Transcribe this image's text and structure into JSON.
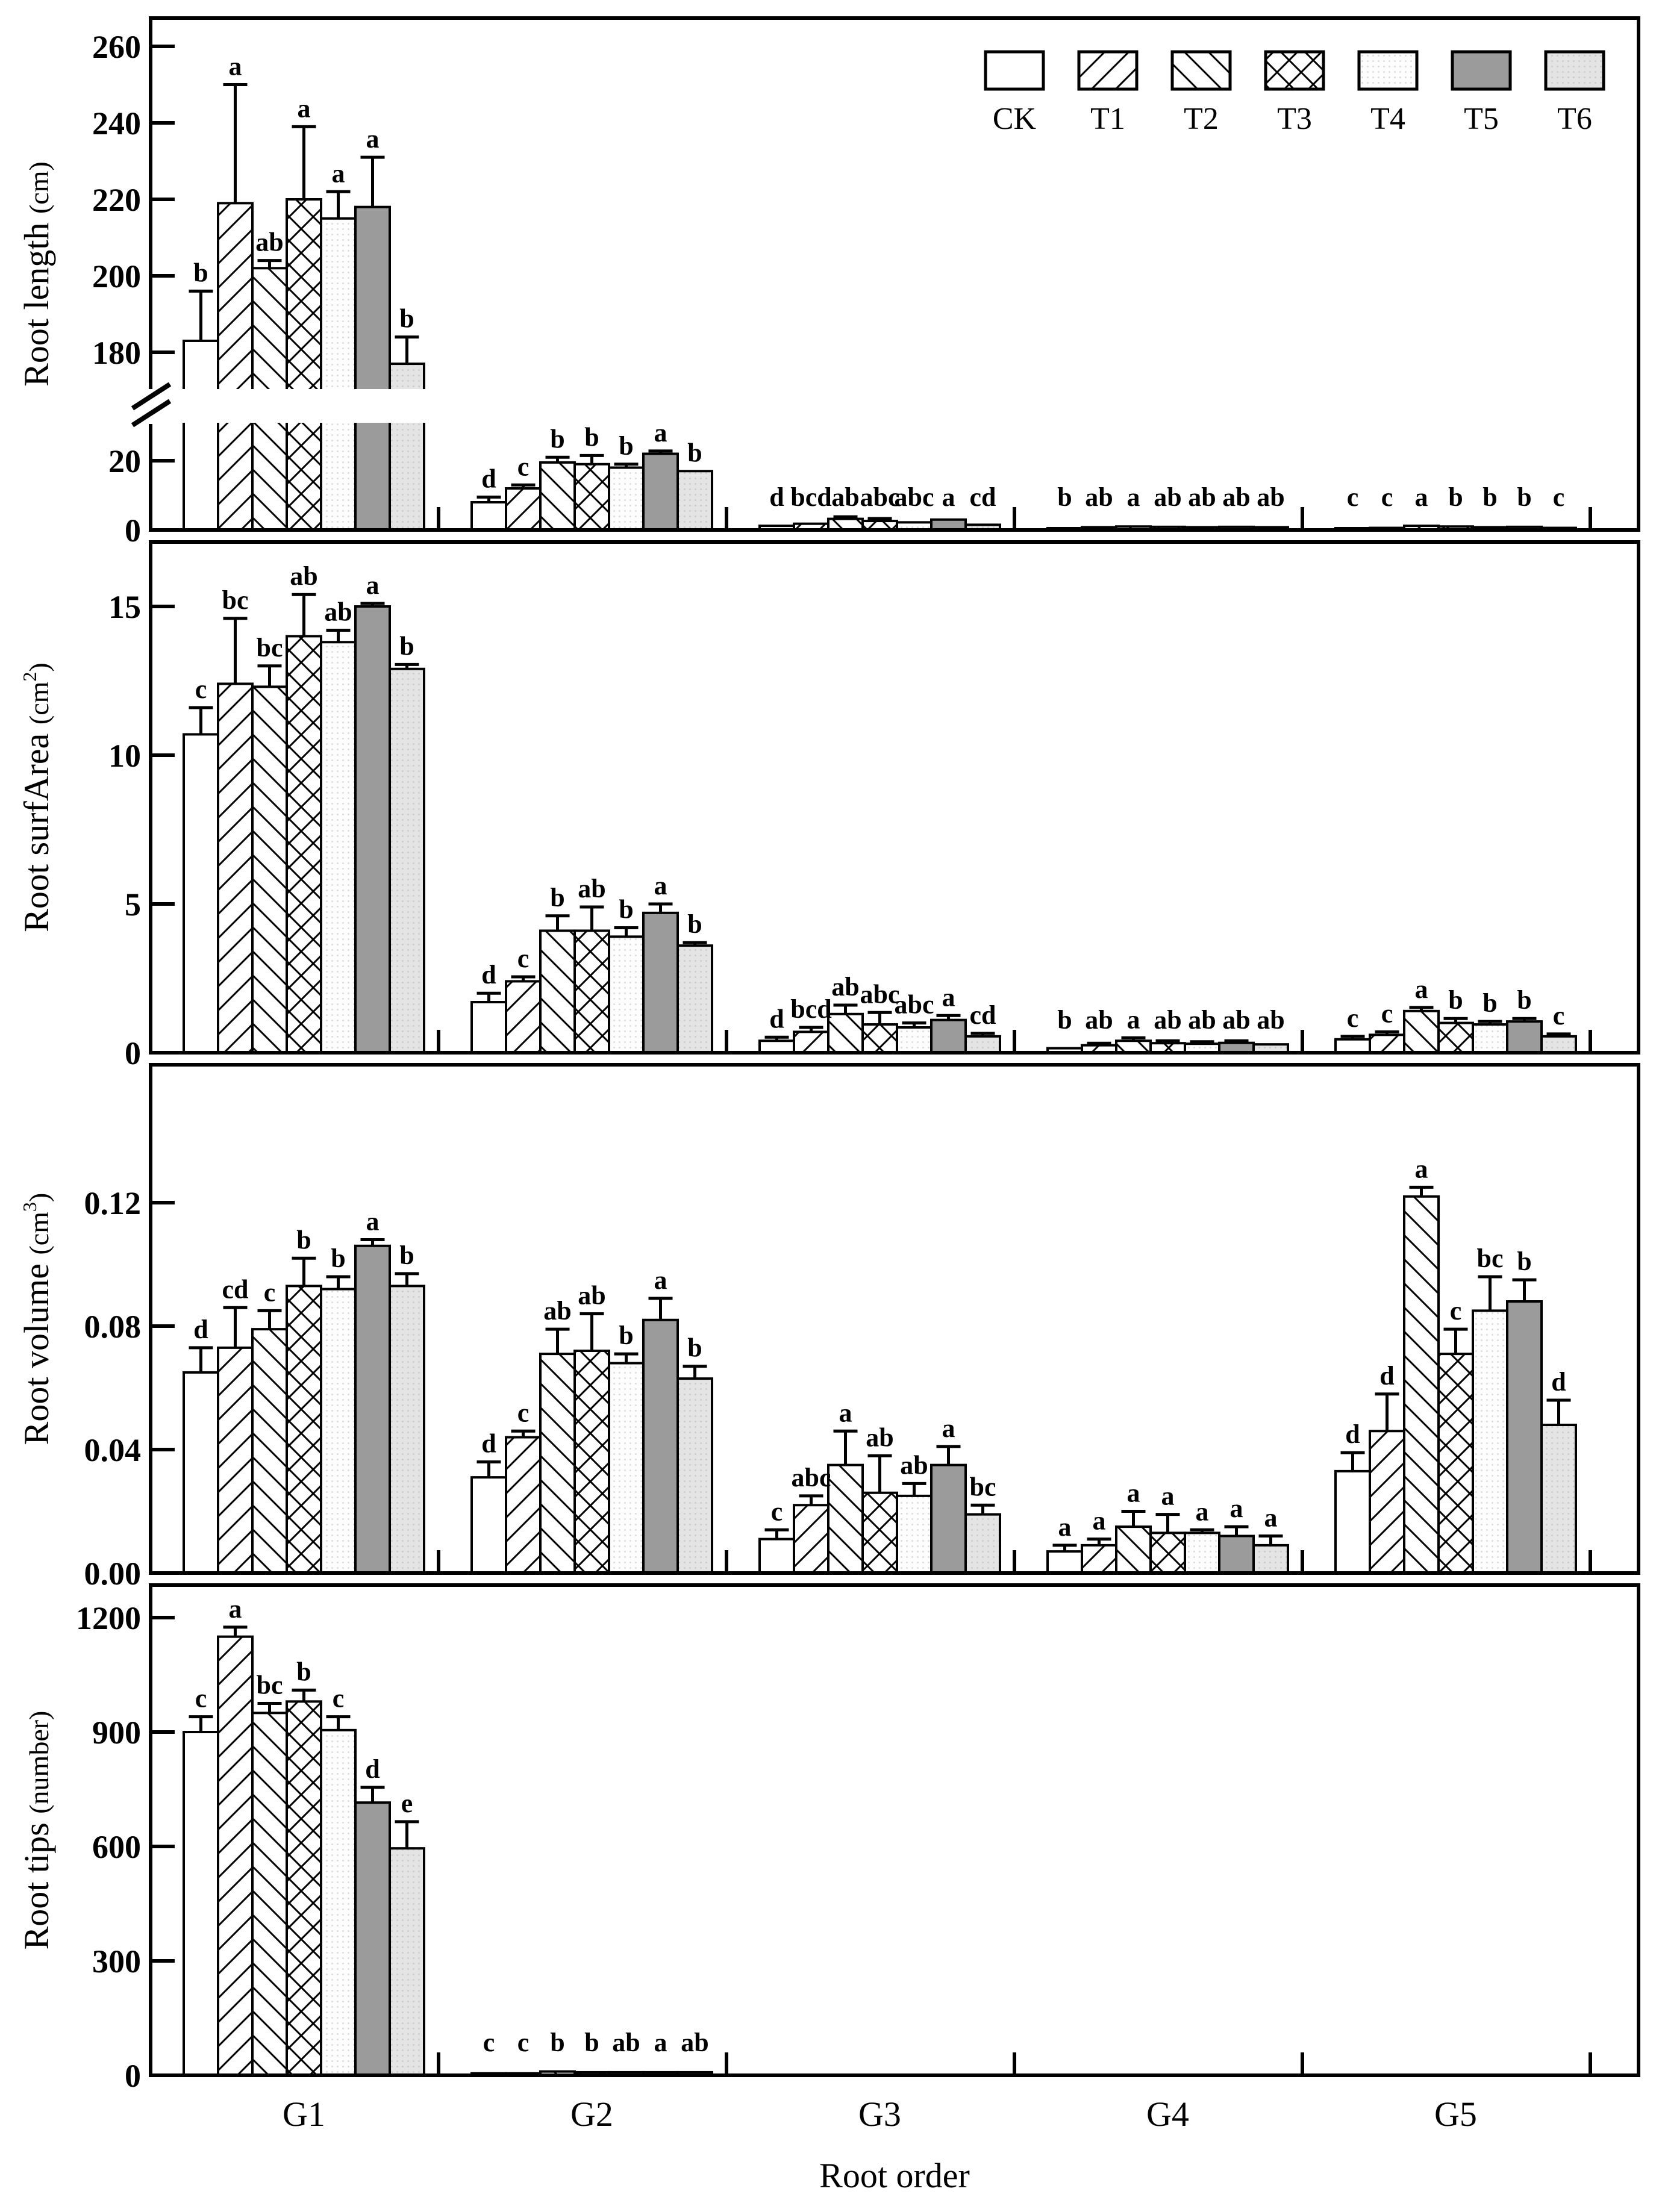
{
  "figure": {
    "xlabel": "Root order",
    "groups": [
      "G1",
      "G2",
      "G3",
      "G4",
      "G5"
    ],
    "legend": [
      "CK",
      "T1",
      "T2",
      "T3",
      "T4",
      "T5",
      "T6"
    ],
    "style": {
      "ink": "#000000",
      "t4_bg": "#fdfdfd",
      "t4_dot": "#d8d8d8",
      "t5_fill": "#9b9b9b",
      "t6_bg": "#e4e4e4",
      "t6_dot": "#c9c9c9"
    }
  },
  "chart_data": [
    {
      "type": "bar",
      "ylabel": {
        "name": "Root length",
        "unit_prefix": "(cm",
        "unit_sup": "",
        "unit_suffix": ")"
      },
      "axis_break": {
        "lower_max": 30,
        "upper_min": 170
      },
      "yticks_lower": [
        "0",
        "20"
      ],
      "yticks_upper": [
        "180",
        "200",
        "220",
        "240",
        "260"
      ],
      "categories": [
        "G1",
        "G2",
        "G3",
        "G4",
        "G5"
      ],
      "series": [
        {
          "name": "CK",
          "values": [
            183,
            8,
            1.2,
            0.5,
            0.5
          ],
          "errors": [
            13,
            1.5,
            0.4,
            0.2,
            0.15
          ],
          "letters": [
            "b",
            "d",
            "d",
            "b",
            "c"
          ]
        },
        {
          "name": "T1",
          "values": [
            219,
            12,
            1.8,
            0.8,
            0.6
          ],
          "errors": [
            31,
            1,
            0.5,
            0.3,
            0.2
          ],
          "letters": [
            "a",
            "c",
            "bcd",
            "ab",
            "c"
          ]
        },
        {
          "name": "T2",
          "values": [
            202,
            19.5,
            3.2,
            1.0,
            1.2
          ],
          "errors": [
            2,
            1.5,
            0.6,
            0.3,
            0.3
          ],
          "letters": [
            "ab",
            "b",
            "ab",
            "a",
            "a"
          ]
        },
        {
          "name": "T3",
          "values": [
            220,
            19,
            2.6,
            0.9,
            1.0
          ],
          "errors": [
            19,
            2.5,
            0.7,
            0.3,
            0.3
          ],
          "letters": [
            "a",
            "b",
            "abc",
            "ab",
            "b"
          ]
        },
        {
          "name": "T4",
          "values": [
            215,
            18,
            2.2,
            0.8,
            0.8
          ],
          "errors": [
            7,
            1,
            0.5,
            0.3,
            0.2
          ],
          "letters": [
            "a",
            "b",
            "abc",
            "ab",
            "b"
          ]
        },
        {
          "name": "T5",
          "values": [
            218,
            22,
            3.0,
            0.9,
            0.9
          ],
          "errors": [
            13,
            0.8,
            0.4,
            0.3,
            0.2
          ],
          "letters": [
            "a",
            "a",
            "a",
            "ab",
            "b"
          ]
        },
        {
          "name": "T6",
          "values": [
            177,
            17,
            1.5,
            0.8,
            0.6
          ],
          "errors": [
            7,
            0.5,
            0.4,
            0.2,
            0.2
          ],
          "letters": [
            "b",
            "b",
            "cd",
            "ab",
            "c"
          ]
        }
      ]
    },
    {
      "type": "bar",
      "ylabel": {
        "name": "Root surfArea",
        "unit_prefix": "(cm",
        "unit_sup": "2",
        "unit_suffix": ")"
      },
      "yticks": [
        "0",
        "5",
        "10",
        "15"
      ],
      "ytick_values": [
        0,
        5,
        10,
        15
      ],
      "categories": [
        "G1",
        "G2",
        "G3",
        "G4",
        "G5"
      ],
      "series": [
        {
          "name": "CK",
          "values": [
            10.7,
            1.7,
            0.4,
            0.15,
            0.45
          ],
          "errors": [
            0.9,
            0.3,
            0.12,
            0.06,
            0.1
          ],
          "letters": [
            "c",
            "d",
            "d",
            "b",
            "c"
          ]
        },
        {
          "name": "T1",
          "values": [
            12.4,
            2.4,
            0.7,
            0.25,
            0.6
          ],
          "errors": [
            2.2,
            0.15,
            0.15,
            0.07,
            0.1
          ],
          "letters": [
            "bc",
            "c",
            "bcd",
            "ab",
            "c"
          ]
        },
        {
          "name": "T2",
          "values": [
            12.3,
            4.1,
            1.3,
            0.4,
            1.4
          ],
          "errors": [
            0.7,
            0.5,
            0.3,
            0.1,
            0.12
          ],
          "letters": [
            "bc",
            "b",
            "ab",
            "a",
            "a"
          ]
        },
        {
          "name": "T3",
          "values": [
            14.0,
            4.1,
            0.95,
            0.32,
            1.0
          ],
          "errors": [
            1.4,
            0.8,
            0.4,
            0.08,
            0.15
          ],
          "letters": [
            "ab",
            "ab",
            "abc",
            "ab",
            "b"
          ]
        },
        {
          "name": "T4",
          "values": [
            13.8,
            3.9,
            0.85,
            0.3,
            0.95
          ],
          "errors": [
            0.4,
            0.3,
            0.15,
            0.07,
            0.1
          ],
          "letters": [
            "ab",
            "b",
            "abc",
            "ab",
            "b"
          ]
        },
        {
          "name": "T5",
          "values": [
            15.0,
            4.7,
            1.1,
            0.33,
            1.05
          ],
          "errors": [
            0.1,
            0.3,
            0.15,
            0.07,
            0.1
          ],
          "letters": [
            "a",
            "a",
            "a",
            "ab",
            "b"
          ]
        },
        {
          "name": "T6",
          "values": [
            12.9,
            3.6,
            0.55,
            0.28,
            0.55
          ],
          "errors": [
            0.15,
            0.1,
            0.1,
            0.06,
            0.08
          ],
          "letters": [
            "b",
            "b",
            "cd",
            "ab",
            "c"
          ]
        }
      ]
    },
    {
      "type": "bar",
      "ylabel": {
        "name": "Root volume",
        "unit_prefix": "(cm",
        "unit_sup": "3",
        "unit_suffix": ")"
      },
      "yticks": [
        "0.00",
        "0.04",
        "0.08",
        "0.12"
      ],
      "ytick_values": [
        0,
        0.04,
        0.08,
        0.12
      ],
      "categories": [
        "G1",
        "G2",
        "G3",
        "G4",
        "G5"
      ],
      "series": [
        {
          "name": "CK",
          "values": [
            0.065,
            0.031,
            0.011,
            0.007,
            0.033
          ],
          "errors": [
            0.008,
            0.005,
            0.003,
            0.002,
            0.006
          ],
          "letters": [
            "d",
            "d",
            "c",
            "a",
            "d"
          ]
        },
        {
          "name": "T1",
          "values": [
            0.073,
            0.044,
            0.022,
            0.009,
            0.046
          ],
          "errors": [
            0.013,
            0.002,
            0.003,
            0.002,
            0.012
          ],
          "letters": [
            "cd",
            "c",
            "abc",
            "a",
            "d"
          ]
        },
        {
          "name": "T2",
          "values": [
            0.079,
            0.071,
            0.035,
            0.015,
            0.122
          ],
          "errors": [
            0.006,
            0.008,
            0.011,
            0.005,
            0.003
          ],
          "letters": [
            "c",
            "ab",
            "a",
            "a",
            "a"
          ]
        },
        {
          "name": "T3",
          "values": [
            0.093,
            0.072,
            0.026,
            0.013,
            0.071
          ],
          "errors": [
            0.009,
            0.012,
            0.012,
            0.006,
            0.008
          ],
          "letters": [
            "b",
            "ab",
            "ab",
            "a",
            "c"
          ]
        },
        {
          "name": "T4",
          "values": [
            0.092,
            0.068,
            0.025,
            0.013,
            0.085
          ],
          "errors": [
            0.004,
            0.003,
            0.004,
            0.001,
            0.011
          ],
          "letters": [
            "b",
            "b",
            "ab",
            "a",
            "bc"
          ]
        },
        {
          "name": "T5",
          "values": [
            0.106,
            0.082,
            0.035,
            0.012,
            0.088
          ],
          "errors": [
            0.002,
            0.007,
            0.006,
            0.003,
            0.007
          ],
          "letters": [
            "a",
            "a",
            "a",
            "a",
            "b"
          ]
        },
        {
          "name": "T6",
          "values": [
            0.093,
            0.063,
            0.019,
            0.009,
            0.048
          ],
          "errors": [
            0.004,
            0.004,
            0.003,
            0.003,
            0.008
          ],
          "letters": [
            "b",
            "b",
            "bc",
            "a",
            "d"
          ]
        }
      ]
    },
    {
      "type": "bar",
      "ylabel": {
        "name": "Root tips",
        "unit_prefix": "(number",
        "unit_sup": "",
        "unit_suffix": ")"
      },
      "yticks": [
        "0",
        "300",
        "600",
        "900",
        "1200"
      ],
      "ytick_values": [
        0,
        300,
        600,
        900,
        1200
      ],
      "categories": [
        "G1",
        "G2",
        "G3",
        "G4",
        "G5"
      ],
      "series": [
        {
          "name": "CK",
          "values": [
            900,
            5,
            0,
            0,
            0
          ],
          "errors": [
            40,
            2,
            0,
            0,
            0
          ],
          "letters": [
            "c",
            "c",
            "",
            "",
            ""
          ]
        },
        {
          "name": "T1",
          "values": [
            1150,
            5,
            0,
            0,
            0
          ],
          "errors": [
            25,
            2,
            0,
            0,
            0
          ],
          "letters": [
            "a",
            "c",
            "",
            "",
            ""
          ]
        },
        {
          "name": "T2",
          "values": [
            950,
            10,
            0,
            0,
            0
          ],
          "errors": [
            25,
            3,
            0,
            0,
            0
          ],
          "letters": [
            "bc",
            "b",
            "",
            "",
            ""
          ]
        },
        {
          "name": "T3",
          "values": [
            980,
            8,
            0,
            0,
            0
          ],
          "errors": [
            30,
            2,
            0,
            0,
            0
          ],
          "letters": [
            "b",
            "b",
            "",
            "",
            ""
          ]
        },
        {
          "name": "T4",
          "values": [
            905,
            8,
            0,
            0,
            0
          ],
          "errors": [
            35,
            2,
            0,
            0,
            0
          ],
          "letters": [
            "c",
            "ab",
            "",
            "",
            ""
          ]
        },
        {
          "name": "T5",
          "values": [
            715,
            8,
            0,
            0,
            0
          ],
          "errors": [
            40,
            2,
            0,
            0,
            0
          ],
          "letters": [
            "d",
            "a",
            "",
            "",
            ""
          ]
        },
        {
          "name": "T6",
          "values": [
            595,
            8,
            0,
            0,
            0
          ],
          "errors": [
            70,
            2,
            0,
            0,
            0
          ],
          "letters": [
            "e",
            "ab",
            "",
            "",
            ""
          ]
        }
      ]
    }
  ]
}
